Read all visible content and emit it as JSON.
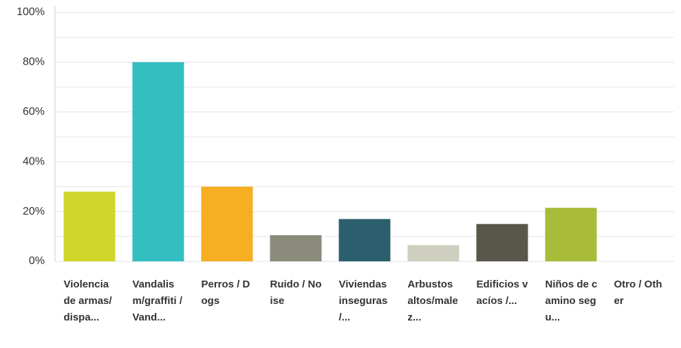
{
  "chart_data": {
    "type": "bar",
    "categories": [
      "Violencia de armas/dispa...",
      "Vandalism/graffiti / Vand...",
      "Perros / Dogs",
      "Ruido / Noise",
      "Viviendas inseguras /...",
      "Arbustos altos/malez...",
      "Edificios vacíos /...",
      "Niños de camino segu...",
      "Otro / Other"
    ],
    "values": [
      28,
      80,
      30,
      10.5,
      17,
      6.5,
      15,
      21.5,
      0
    ],
    "colors": [
      "#d0d62a",
      "#33bec0",
      "#f6ae22",
      "#8b8b7b",
      "#2c5f6e",
      "#cfcfc0",
      "#58574a",
      "#a9bc3a",
      "#999999"
    ],
    "ylim": [
      0,
      100
    ],
    "yticks": [
      {
        "value": 0,
        "label": "0%"
      },
      {
        "value": 20,
        "label": "20%"
      },
      {
        "value": 40,
        "label": "40%"
      },
      {
        "value": 60,
        "label": "60%"
      },
      {
        "value": 80,
        "label": "80%"
      },
      {
        "value": 100,
        "label": "100%"
      }
    ],
    "minor_yticks": [
      10,
      30,
      50,
      70,
      90
    ],
    "grid": true
  }
}
